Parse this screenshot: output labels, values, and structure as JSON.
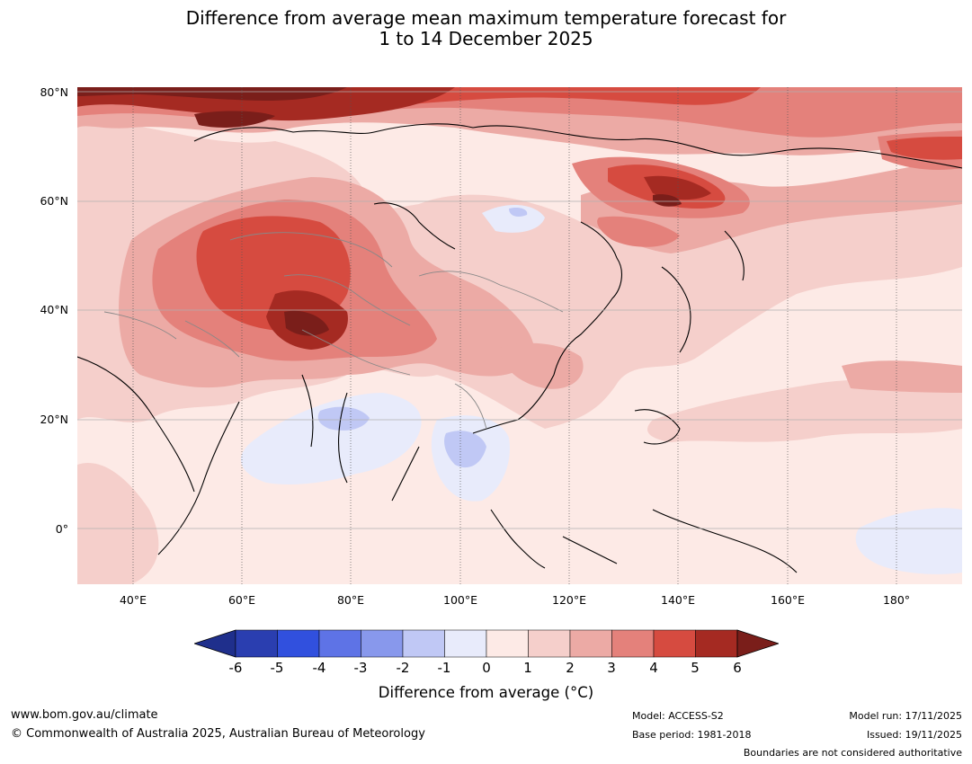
{
  "title": {
    "line1": "Difference from average mean maximum temperature forecast for",
    "line2": "1 to 14 December 2025"
  },
  "map": {
    "lat_labels": [
      "80°N",
      "60°N",
      "40°N",
      "20°N",
      "0°"
    ],
    "lon_labels": [
      "40°E",
      "60°E",
      "80°E",
      "100°E",
      "120°E",
      "140°E",
      "160°E",
      "180°"
    ],
    "lat_range": [
      -10,
      80
    ],
    "lon_range": [
      30,
      192
    ]
  },
  "colorbar": {
    "ticks": [
      "-6",
      "-5",
      "-4",
      "-3",
      "-2",
      "-1",
      "0",
      "1",
      "2",
      "3",
      "4",
      "5",
      "6"
    ],
    "colors": [
      "#1f2f8c",
      "#2a3eb0",
      "#3150de",
      "#5e73e6",
      "#8898ec",
      "#c0c8f5",
      "#e8ebfb",
      "#fdeae6",
      "#f5cfcb",
      "#ecaaa5",
      "#e4817b",
      "#d64b40",
      "#a52a22",
      "#7a1e1a"
    ],
    "label": "Difference from average (°C)"
  },
  "footer": {
    "website": "www.bom.gov.au/climate",
    "copyright": "© Commonwealth of Australia 2025, Australian Bureau of Meteorology",
    "model": "Model: ACCESS-S2",
    "base_period": "Base period: 1981-2018",
    "model_run": "Model run: 17/11/2025",
    "issued": "Issued: 19/11/2025",
    "disclaimer": "Boundaries are not considered authoritative"
  }
}
